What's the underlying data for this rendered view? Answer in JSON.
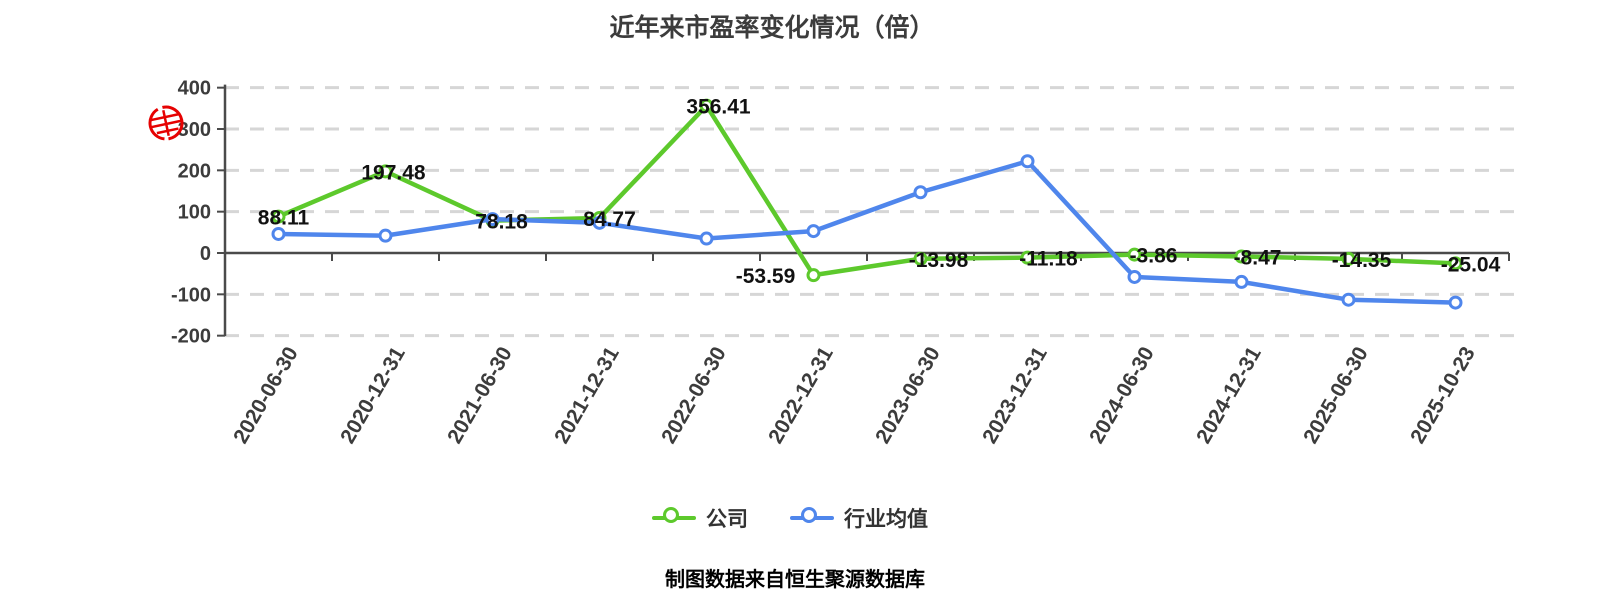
{
  "title": "近年来市盈率变化情况（倍）",
  "footer": "制图数据来自恒生聚源数据库",
  "legend": [
    {
      "label": "公司",
      "color": "#5dc92c"
    },
    {
      "label": "行业均值",
      "color": "#4f86ec"
    }
  ],
  "colors": {
    "company_line": "#5dc92c",
    "industry_line": "#4f86ec",
    "grid": "#d6d6d6",
    "axis": "#4a4a4a",
    "tick_label": "#3c3c3c",
    "value_label": "#111111",
    "footer_text": "#9a761f",
    "seal": "#e60202"
  },
  "watermark": {
    "name": "red-seal-stamp"
  },
  "chart_data": {
    "type": "line",
    "title": "近年来市盈率变化情况（倍）",
    "categories": [
      "2020-06-30",
      "2020-12-31",
      "2021-06-30",
      "2021-12-31",
      "2022-06-30",
      "2022-12-31",
      "2023-06-30",
      "2023-12-31",
      "2024-06-30",
      "2024-12-31",
      "2025-06-30",
      "2025-10-23"
    ],
    "series": [
      {
        "name": "公司",
        "color": "#5dc92c",
        "values": [
          88.11,
          197.48,
          78.18,
          84.77,
          356.41,
          -53.59,
          -13.98,
          -11.18,
          -3.86,
          -8.47,
          -14.35,
          -25.04
        ],
        "labels": [
          "88.11",
          "197.48",
          "78.18",
          "84.77",
          "356.41",
          "-53.59",
          "-13.98",
          "-11.18",
          "-3.86",
          "-8.47",
          "-14.35",
          "-25.04"
        ],
        "labels_shown": true
      },
      {
        "name": "行业均值",
        "color": "#4f86ec",
        "values": [
          46,
          42,
          82,
          73,
          35,
          53,
          147,
          222,
          -58,
          -70,
          -113,
          -120
        ],
        "labels_shown": false
      }
    ],
    "ylim": [
      -200,
      400
    ],
    "yticks": [
      400,
      300,
      200,
      100,
      0,
      -100,
      -200
    ],
    "grid": "horizontal-dashed",
    "legend_position": "bottom"
  }
}
